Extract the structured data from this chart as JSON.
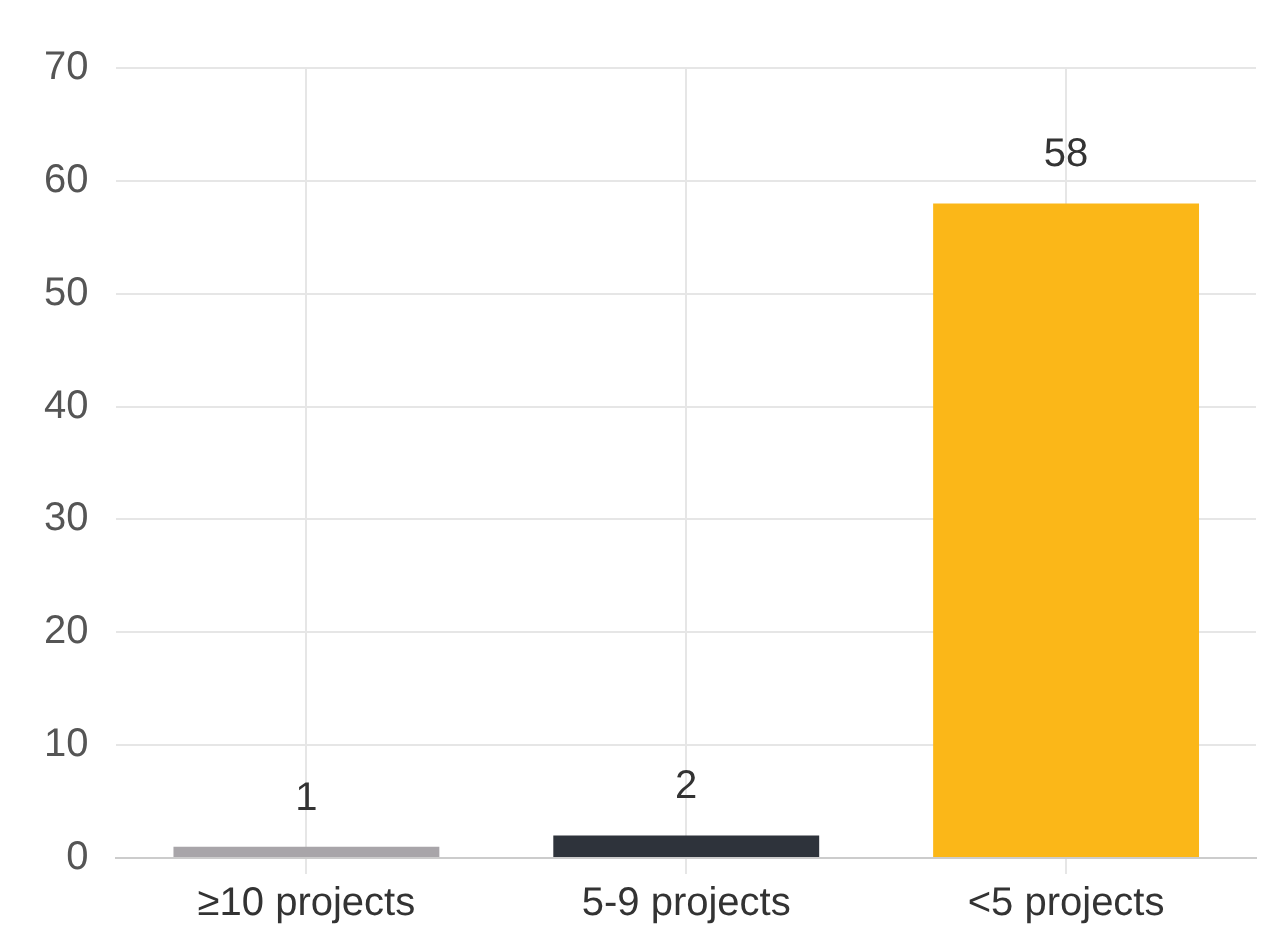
{
  "chart_data": {
    "type": "bar",
    "categories": [
      "≥10 projects",
      "5-9 projects",
      "<5 projects"
    ],
    "values": [
      1,
      2,
      58
    ],
    "colors": [
      "#a8a5a9",
      "#2e333b",
      "#fbb718"
    ],
    "ylim": [
      0,
      70
    ],
    "yticks": [
      0,
      10,
      20,
      30,
      40,
      50,
      60,
      70
    ],
    "grid": true,
    "data_labels": true
  }
}
